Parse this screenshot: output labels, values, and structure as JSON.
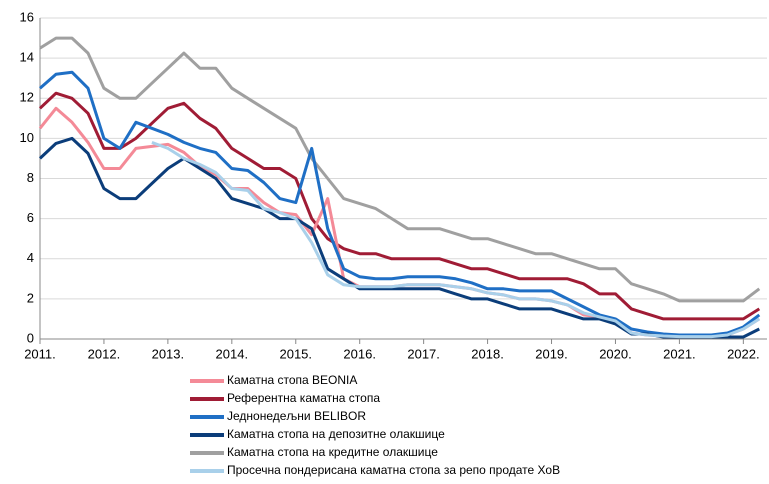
{
  "chart_data": {
    "type": "line",
    "x": [
      2011,
      2011.25,
      2011.5,
      2011.75,
      2012,
      2012.25,
      2012.5,
      2012.75,
      2013,
      2013.25,
      2013.5,
      2013.75,
      2014,
      2014.25,
      2014.5,
      2014.75,
      2015,
      2015.25,
      2015.5,
      2015.75,
      2016,
      2016.25,
      2016.5,
      2016.75,
      2017,
      2017.25,
      2017.5,
      2017.75,
      2018,
      2018.25,
      2018.5,
      2018.75,
      2019,
      2019.25,
      2019.5,
      2019.75,
      2020,
      2020.25,
      2020.5,
      2020.75,
      2021,
      2021.25,
      2021.5,
      2021.75,
      2022,
      2022.25
    ],
    "series": [
      {
        "name": "Каматна стопа BEONIA",
        "color": "#f48a97",
        "values": [
          10.5,
          11.5,
          10.8,
          9.8,
          8.5,
          8.5,
          9.5,
          9.6,
          9.7,
          9.3,
          8.6,
          8.2,
          7.5,
          7.5,
          6.8,
          6.3,
          6.2,
          5.2,
          7.0,
          3.0,
          2.6,
          2.6,
          2.6,
          2.7,
          2.7,
          2.7,
          2.6,
          2.5,
          2.3,
          2.2,
          2.0,
          2.0,
          1.9,
          1.7,
          1.2,
          1.1,
          0.9,
          0.3,
          0.2,
          0.15,
          0.12,
          0.12,
          0.12,
          0.2,
          0.5,
          1.0
        ]
      },
      {
        "name": "Референтна каматна стопа",
        "color": "#a01c35",
        "values": [
          11.5,
          12.25,
          12,
          11.25,
          9.5,
          9.5,
          10,
          10.75,
          11.5,
          11.75,
          11,
          10.5,
          9.5,
          9,
          8.5,
          8.5,
          8,
          6,
          5,
          4.5,
          4.25,
          4.25,
          4,
          4,
          4,
          4,
          3.75,
          3.5,
          3.5,
          3.25,
          3,
          3,
          3,
          3,
          2.75,
          2.25,
          2.25,
          1.5,
          1.25,
          1.0,
          1,
          1,
          1,
          1,
          1,
          1.5
        ]
      },
      {
        "name": "Једнонедељни BELIBOR",
        "color": "#1f6fc5",
        "values": [
          12.5,
          13.2,
          13.3,
          12.5,
          10,
          9.5,
          10.8,
          10.5,
          10.2,
          9.8,
          9.5,
          9.3,
          8.5,
          8.4,
          7.8,
          7,
          6.8,
          9.5,
          5.5,
          3.5,
          3.1,
          3,
          3,
          3.1,
          3.1,
          3.1,
          3,
          2.8,
          2.5,
          2.5,
          2.4,
          2.4,
          2.4,
          2,
          1.6,
          1.2,
          1.0,
          0.5,
          0.35,
          0.25,
          0.2,
          0.2,
          0.2,
          0.3,
          0.6,
          1.2
        ]
      },
      {
        "name": "Каматна стопа на депозитне олакшице",
        "color": "#0b3d7a",
        "values": [
          9,
          9.75,
          10,
          9.25,
          7.5,
          7,
          7,
          7.75,
          8.5,
          9,
          8.5,
          8,
          7,
          6.75,
          6.5,
          6,
          6,
          5.5,
          3.5,
          3,
          2.5,
          2.5,
          2.5,
          2.5,
          2.5,
          2.5,
          2.25,
          2,
          2,
          1.75,
          1.5,
          1.5,
          1.5,
          1.25,
          1,
          1,
          0.75,
          0.25,
          0.25,
          0.1,
          0.1,
          0.1,
          0.1,
          0.1,
          0.1,
          0.5
        ]
      },
      {
        "name": "Каматна стопа на кредитне олакшице",
        "color": "#a0a0a0",
        "values": [
          14.5,
          15,
          15,
          14.25,
          12.5,
          12,
          12,
          12.75,
          13.5,
          14.25,
          13.5,
          13.5,
          12.5,
          12,
          11.5,
          11,
          10.5,
          9,
          8,
          7,
          6.75,
          6.5,
          6,
          5.5,
          5.5,
          5.5,
          5.25,
          5,
          5,
          4.75,
          4.5,
          4.25,
          4.25,
          4,
          3.75,
          3.5,
          3.5,
          2.75,
          2.5,
          2.25,
          1.9,
          1.9,
          1.9,
          1.9,
          1.9,
          2.5
        ]
      },
      {
        "name": "Просечна пондерисана каматна стопа за репо продате ХоВ",
        "color": "#a9d0ea",
        "values": [
          null,
          null,
          null,
          null,
          null,
          null,
          null,
          9.8,
          9.5,
          9.0,
          8.7,
          8.3,
          7.5,
          7.4,
          6.5,
          6.3,
          6.0,
          4.8,
          3.2,
          2.7,
          2.6,
          2.6,
          2.6,
          2.7,
          2.7,
          2.7,
          2.6,
          2.5,
          2.3,
          2.2,
          2.0,
          2.0,
          1.9,
          1.7,
          1.3,
          1.1,
          0.9,
          0.3,
          0.2,
          0.15,
          0.12,
          0.12,
          0.12,
          0.2,
          0.5,
          1.0
        ]
      }
    ],
    "xlim": [
      2011,
      2022.37
    ],
    "xticks": [
      {
        "value": 2011,
        "label": "2011."
      },
      {
        "value": 2012,
        "label": "2012."
      },
      {
        "value": 2013,
        "label": "2013."
      },
      {
        "value": 2014,
        "label": "2014."
      },
      {
        "value": 2015,
        "label": "2015."
      },
      {
        "value": 2016,
        "label": "2016."
      },
      {
        "value": 2017,
        "label": "2017."
      },
      {
        "value": 2018,
        "label": "2018."
      },
      {
        "value": 2019,
        "label": "2019."
      },
      {
        "value": 2020,
        "label": "2020."
      },
      {
        "value": 2021,
        "label": "2021."
      },
      {
        "value": 2022,
        "label": "2022."
      }
    ],
    "ylim": [
      0,
      16
    ],
    "yticks": [
      0,
      2,
      4,
      6,
      8,
      10,
      12,
      14,
      16
    ],
    "grid": true,
    "legend": "bottom"
  }
}
